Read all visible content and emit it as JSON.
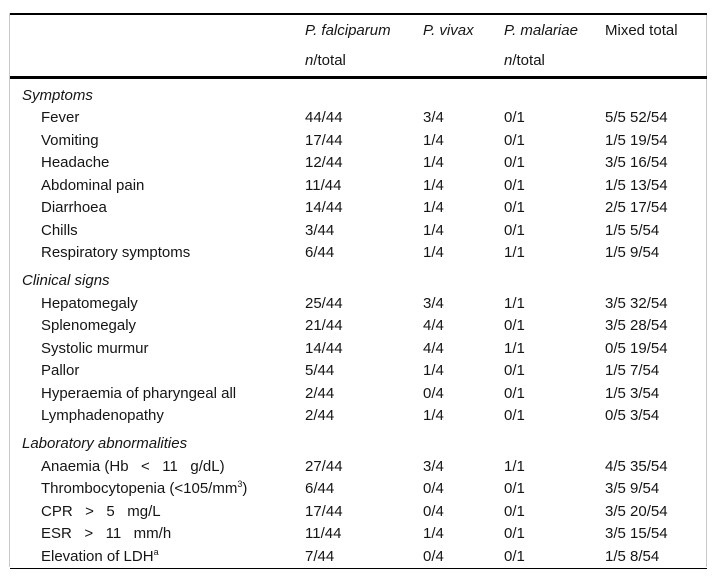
{
  "table": {
    "header": {
      "columns": [
        {
          "label": "P. falciparum",
          "italic": true,
          "sub_italic": "n",
          "sub_rest": "/total"
        },
        {
          "label": "P. vivax",
          "italic": true,
          "sub_italic": "",
          "sub_rest": ""
        },
        {
          "label": "P. malariae",
          "italic": true,
          "sub_italic": "n",
          "sub_rest": "/total"
        },
        {
          "label": "Mixed total",
          "italic": false,
          "sub_italic": "",
          "sub_rest": ""
        }
      ]
    },
    "sections": [
      {
        "title": "Symptoms",
        "rows": [
          {
            "label": "Fever",
            "values": [
              "44/44",
              "3/4",
              "0/1",
              "5/5 52/54"
            ]
          },
          {
            "label": "Vomiting",
            "values": [
              "17/44",
              "1/4",
              "0/1",
              "1/5 19/54"
            ]
          },
          {
            "label": "Headache",
            "values": [
              "12/44",
              "1/4",
              "0/1",
              "3/5 16/54"
            ]
          },
          {
            "label": "Abdominal pain",
            "values": [
              "11/44",
              "1/4",
              "0/1",
              "1/5 13/54"
            ]
          },
          {
            "label": "Diarrhoea",
            "values": [
              "14/44",
              "1/4",
              "0/1",
              "2/5 17/54"
            ]
          },
          {
            "label": "Chills",
            "values": [
              "3/44",
              "1/4",
              "0/1",
              "1/5 5/54"
            ]
          },
          {
            "label": "Respiratory symptoms",
            "values": [
              "6/44",
              "1/4",
              "1/1",
              "1/5 9/54"
            ]
          }
        ]
      },
      {
        "title": "Clinical signs",
        "rows": [
          {
            "label": "Hepatomegaly",
            "values": [
              "25/44",
              "3/4",
              "1/1",
              "3/5 32/54"
            ]
          },
          {
            "label": "Splenomegaly",
            "values": [
              "21/44",
              "4/4",
              "0/1",
              "3/5 28/54"
            ]
          },
          {
            "label": "Systolic murmur",
            "values": [
              "14/44",
              "4/4",
              "1/1",
              "0/5 19/54"
            ]
          },
          {
            "label": "Pallor",
            "values": [
              "5/44",
              "1/4",
              "0/1",
              "1/5 7/54"
            ]
          },
          {
            "label": "Hyperaemia of pharyngeal all",
            "values": [
              "2/44",
              "0/4",
              "0/1",
              "1/5 3/54"
            ]
          },
          {
            "label": "Lymphadenopathy",
            "values": [
              "2/44",
              "1/4",
              "0/1",
              "0/5 3/54"
            ]
          }
        ]
      },
      {
        "title": "Laboratory abnormalities",
        "rows": [
          {
            "label": "Anaemia (Hb   <   11   g/dL)",
            "values": [
              "27/44",
              "3/4",
              "1/1",
              "4/5 35/54"
            ]
          },
          {
            "label": "Thrombocytopenia (<105/mm",
            "sup": "3",
            "after": ")",
            "values": [
              "6/44",
              "0/4",
              "0/1",
              "3/5 9/54"
            ]
          },
          {
            "label": "CPR   >   5   mg/L",
            "values": [
              "17/44",
              "0/4",
              "0/1",
              "3/5 20/54"
            ]
          },
          {
            "label": "ESR   >   11   mm/h",
            "values": [
              "11/44",
              "1/4",
              "0/1",
              "3/5 15/54"
            ]
          },
          {
            "label": "Elevation of LDH",
            "sup": "a",
            "values": [
              "7/44",
              "0/4",
              "0/1",
              "1/5 8/54"
            ]
          }
        ]
      }
    ]
  }
}
